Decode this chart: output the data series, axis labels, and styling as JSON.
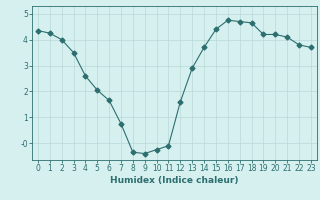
{
  "x": [
    0,
    1,
    2,
    3,
    4,
    5,
    6,
    7,
    8,
    9,
    10,
    11,
    12,
    13,
    14,
    15,
    16,
    17,
    18,
    19,
    20,
    21,
    22,
    23
  ],
  "y": [
    4.35,
    4.25,
    4.0,
    3.5,
    2.6,
    2.05,
    1.65,
    0.75,
    -0.35,
    -0.4,
    -0.25,
    -0.1,
    1.6,
    2.9,
    3.7,
    4.4,
    4.75,
    4.7,
    4.65,
    4.2,
    4.2,
    4.1,
    3.8,
    3.7
  ],
  "line_color": "#2d6e6e",
  "marker": "D",
  "markersize": 2.5,
  "bg_color": "#d6f0f0",
  "grid_color": "#b8d8d8",
  "xlabel": "Humidex (Indice chaleur)",
  "ylabel": "",
  "title": "",
  "xlim": [
    -0.5,
    23.5
  ],
  "ylim": [
    -0.65,
    5.3
  ],
  "yticks": [
    0,
    1,
    2,
    3,
    4,
    5
  ],
  "ytick_labels": [
    "-0",
    "1",
    "2",
    "3",
    "4",
    "5"
  ],
  "xticks": [
    0,
    1,
    2,
    3,
    4,
    5,
    6,
    7,
    8,
    9,
    10,
    11,
    12,
    13,
    14,
    15,
    16,
    17,
    18,
    19,
    20,
    21,
    22,
    23
  ],
  "tick_color": "#2d6e6e",
  "label_fontsize": 6.5,
  "tick_fontsize": 5.5
}
